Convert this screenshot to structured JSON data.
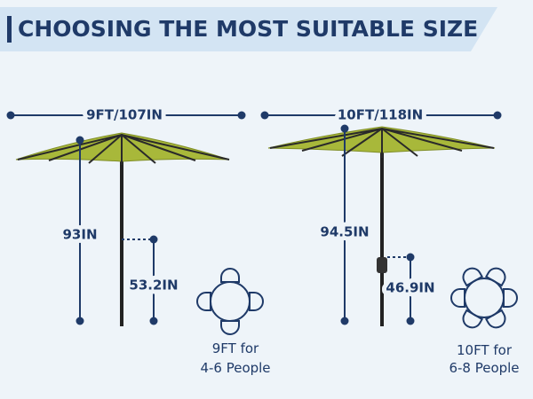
{
  "header": {
    "title": "CHOOSING THE MOST SUITABLE SIZE"
  },
  "panels": [
    {
      "width": "9FT/107IN",
      "height": "93IN",
      "handle_height": "53.2IN",
      "caption": [
        "9FT for",
        "4-6 People"
      ]
    },
    {
      "width": "10FT/118IN",
      "height": "94.5IN",
      "handle_height": "46.9IN",
      "caption": [
        "10FT for",
        "6-8 People"
      ]
    }
  ]
}
